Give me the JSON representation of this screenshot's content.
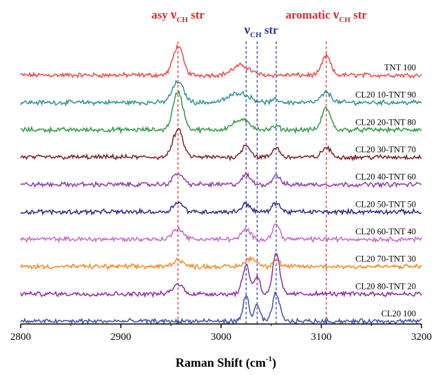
{
  "chart_data": {
    "type": "line",
    "xlabel": "Raman Shift (cm",
    "xlabel_sup": "-1",
    "xlabel_close": ")",
    "xlim": [
      2800,
      3200
    ],
    "x_ticks": [
      "2800",
      "2900",
      "3000",
      "3100",
      "3200"
    ],
    "annotations": [
      {
        "id": "asy",
        "prefix": "asy",
        "nu": "ν",
        "sub": "CH",
        "suffix": "str",
        "color": "#e8262b",
        "x": 2957
      },
      {
        "id": "mid",
        "prefix": "",
        "nu": "ν",
        "sub": "CH",
        "suffix": "str",
        "color": "#2b3aa8",
        "x": 3040
      },
      {
        "id": "aro",
        "prefix": "aromatic",
        "nu": "ν",
        "sub": "CH",
        "suffix": "str",
        "color": "#e8262b",
        "x": 3105
      }
    ],
    "reference_lines": [
      {
        "x": 2957,
        "color": "#e8262b"
      },
      {
        "x": 3025,
        "color": "#2b3aa8"
      },
      {
        "x": 3036,
        "color": "#2b3aa8"
      },
      {
        "x": 3055,
        "color": "#2b3aa8"
      },
      {
        "x": 3105,
        "color": "#e8262b"
      }
    ],
    "series": [
      {
        "name": "TNT 100",
        "color": "#e84a45",
        "peaks": [
          [
            2957,
            42,
            7
          ],
          [
            3020,
            14,
            12
          ],
          [
            3105,
            28,
            6
          ]
        ]
      },
      {
        "name": "CL20 10-TNT 90",
        "color": "#2a8f98",
        "peaks": [
          [
            2957,
            30,
            8
          ],
          [
            3018,
            14,
            14
          ],
          [
            3055,
            4,
            5
          ],
          [
            3105,
            14,
            7
          ]
        ]
      },
      {
        "name": "CL20 20-TNT 80",
        "color": "#2e9a44",
        "peaks": [
          [
            2957,
            55,
            7
          ],
          [
            3020,
            14,
            12
          ],
          [
            3055,
            5,
            5
          ],
          [
            3105,
            32,
            6
          ]
        ]
      },
      {
        "name": "CL20 30-TNT 70",
        "color": "#7a1f24",
        "peaks": [
          [
            2957,
            40,
            7
          ],
          [
            3025,
            18,
            6
          ],
          [
            3055,
            14,
            5
          ],
          [
            3105,
            14,
            6
          ]
        ]
      },
      {
        "name": "CL20 40-TNT 60",
        "color": "#8e3aa4",
        "peaks": [
          [
            2957,
            16,
            7
          ],
          [
            3025,
            14,
            6
          ],
          [
            3055,
            14,
            5
          ]
        ]
      },
      {
        "name": "CL20 50-TNT 50",
        "color": "#2a2a80",
        "peaks": [
          [
            2957,
            14,
            7
          ],
          [
            3025,
            12,
            6
          ],
          [
            3055,
            14,
            5
          ]
        ]
      },
      {
        "name": "CL20 60-TNT 40",
        "color": "#c966c9",
        "peaks": [
          [
            2957,
            16,
            7
          ],
          [
            3025,
            14,
            6
          ],
          [
            3055,
            22,
            5
          ]
        ]
      },
      {
        "name": "CL20 70-TNT 30",
        "color": "#f08a24",
        "peaks": [
          [
            2957,
            10,
            7
          ],
          [
            3030,
            12,
            8
          ],
          [
            3055,
            10,
            5
          ]
        ]
      },
      {
        "name": "CL20 80-TNT 20",
        "color": "#8c2d9a",
        "peaks": [
          [
            2957,
            14,
            7
          ],
          [
            3025,
            42,
            5
          ],
          [
            3036,
            26,
            4
          ],
          [
            3055,
            58,
            5
          ]
        ]
      },
      {
        "name": "CL20 100",
        "color": "#3a4fb0",
        "peaks": [
          [
            3025,
            38,
            4
          ],
          [
            3036,
            24,
            4
          ],
          [
            3055,
            40,
            5
          ]
        ]
      }
    ]
  }
}
